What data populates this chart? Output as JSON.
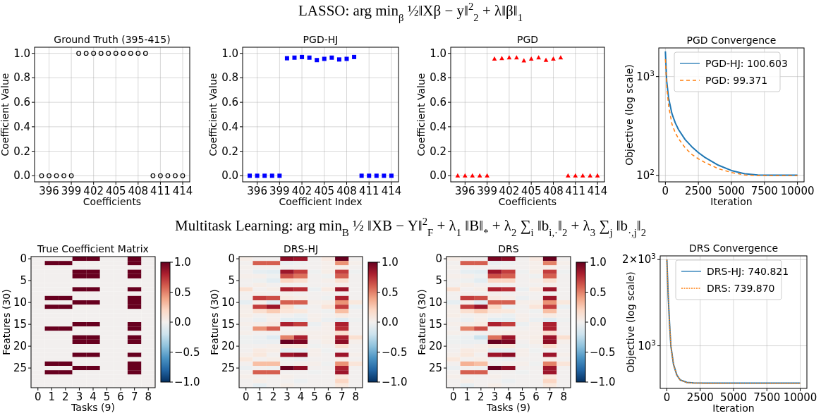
{
  "chart_data": [
    {
      "type": "scatter",
      "title": "Ground Truth (395-415)",
      "xlabel": "Coefficients",
      "ylabel": "Coefficient Value",
      "annotations": [
        "LASSO: arg min$_{β}$ ½‖Xβ − y‖$^{2}$$_{2}$ + λ‖β‖$_{1}$"
      ],
      "marker": "circle",
      "grid": true,
      "xlim": [
        394.05,
        414.95
      ],
      "xticks": [
        396,
        399,
        402,
        405,
        408,
        411,
        414
      ],
      "ylim": [
        -0.05,
        1.05
      ],
      "yticks": [
        {
          "value": 0,
          "label": "0.0"
        },
        {
          "value": 0.2,
          "label": "0.2"
        },
        {
          "value": 0.4,
          "label": "0.4"
        },
        {
          "value": 0.6,
          "label": "0.6"
        },
        {
          "value": 0.8,
          "label": "0.8"
        },
        {
          "value": 1,
          "label": "1.0"
        }
      ],
      "x": [
        395,
        396,
        397,
        398,
        399,
        400,
        401,
        402,
        403,
        404,
        405,
        406,
        407,
        408,
        409,
        410,
        411,
        412,
        413,
        414
      ],
      "series": [
        {
          "color": "#000000",
          "values": [
            0,
            0,
            0,
            0,
            0,
            1,
            1,
            1,
            1,
            1,
            1,
            1,
            1,
            1,
            1,
            0,
            0,
            0,
            0,
            0
          ]
        }
      ]
    },
    {
      "type": "scatter",
      "title": "PGD-HJ",
      "xlabel": "Coefficient Index",
      "ylabel": "Coefficient Value",
      "marker": "square",
      "grid": true,
      "xlim": [
        394.05,
        414.95
      ],
      "xticks": [
        396,
        399,
        402,
        405,
        408,
        411,
        414
      ],
      "ylim": [
        -0.05,
        1.05
      ],
      "yticks": [
        {
          "value": 0,
          "label": "0.0"
        },
        {
          "value": 0.2,
          "label": "0.2"
        },
        {
          "value": 0.4,
          "label": "0.4"
        },
        {
          "value": 0.6,
          "label": "0.6"
        },
        {
          "value": 0.8,
          "label": "0.8"
        },
        {
          "value": 1,
          "label": "1.0"
        }
      ],
      "x": [
        395,
        396,
        397,
        398,
        399,
        400,
        401,
        402,
        403,
        404,
        405,
        406,
        407,
        408,
        409,
        410,
        411,
        412,
        413,
        414
      ],
      "series": [
        {
          "color": "#0000ff",
          "values": [
            0,
            0,
            0,
            0,
            0,
            0.96,
            0.965,
            0.97,
            0.965,
            0.945,
            0.955,
            0.965,
            0.95,
            0.955,
            0.97,
            0,
            0,
            0,
            0,
            0
          ]
        }
      ]
    },
    {
      "type": "scatter",
      "title": "PGD",
      "xlabel": "Coefficients",
      "ylabel": "Coefficient Value",
      "marker": "triangle",
      "grid": true,
      "xlim": [
        394.05,
        414.95
      ],
      "xticks": [
        396,
        399,
        402,
        405,
        408,
        411,
        414
      ],
      "ylim": [
        -0.05,
        1.05
      ],
      "yticks": [
        {
          "value": 0,
          "label": "0.0"
        },
        {
          "value": 0.2,
          "label": "0.2"
        },
        {
          "value": 0.4,
          "label": "0.4"
        },
        {
          "value": 0.6,
          "label": "0.6"
        },
        {
          "value": 0.8,
          "label": "0.8"
        },
        {
          "value": 1,
          "label": "1.0"
        }
      ],
      "x": [
        395,
        396,
        397,
        398,
        399,
        400,
        401,
        402,
        403,
        404,
        405,
        406,
        407,
        408,
        409,
        410,
        411,
        412,
        413,
        414
      ],
      "series": [
        {
          "color": "#ff0000",
          "values": [
            0,
            0,
            0,
            0,
            0,
            0.955,
            0.96,
            0.965,
            0.965,
            0.94,
            0.955,
            0.965,
            0.945,
            0.955,
            0.965,
            0,
            0,
            0,
            0,
            0
          ]
        }
      ]
    },
    {
      "type": "line",
      "title": "PGD Convergence",
      "xlabel": "Iteration",
      "ylabel": "Objective (log scale)",
      "log": true,
      "grid": true,
      "legend": "top left",
      "xlim": [
        -500,
        10500
      ],
      "xticks": [
        0,
        2500,
        5000,
        7500,
        10000
      ],
      "ylim": [
        86,
        1950
      ],
      "yticks": [
        {
          "value": 100,
          "label": "10$^{2}$"
        },
        {
          "value": 1000,
          "label": "10$^{3}$"
        }
      ],
      "series": [
        {
          "name": "PGD-HJ: 100.603",
          "color": "#1f77b4",
          "line_style": "solid",
          "x": [
            0,
            100,
            250,
            500,
            750,
            1000,
            1500,
            2000,
            2500,
            3000,
            4000,
            5000,
            6000,
            7000,
            8000,
            10000
          ],
          "values": [
            1800,
            900,
            600,
            420,
            340,
            290,
            230,
            195,
            170,
            152,
            127,
            112,
            104,
            101,
            100.6,
            100.603
          ]
        },
        {
          "name": "PGD: 99.371",
          "color": "#ff7f0e",
          "line_style": "dashed",
          "x": [
            0,
            100,
            250,
            500,
            750,
            1000,
            1500,
            2000,
            2500,
            3000,
            4000,
            5000,
            6000,
            7000,
            8000,
            10000
          ],
          "values": [
            1500,
            800,
            500,
            330,
            270,
            235,
            190,
            163,
            147,
            135,
            117,
            107,
            101,
            99.6,
            99.4,
            99.371
          ]
        }
      ]
    },
    {
      "type": "heatmap",
      "title": "True Coefficient Matrix",
      "xlabel": "Tasks (9)",
      "ylabel": "Features (30)",
      "annotations": [
        "Multitask Learning: arg min$_{B}$ ½ ‖XB − Y‖$^{2}$$_{F}$ + λ$_{1}$ ‖B‖$_{*}$ + λ$_{2}$ ∑$_{i}$ ‖b$_{i,·}$‖$_{2}$ + λ$_{3}$ ∑$_{j}$ ‖b$_{·,j}$‖$_{2}$"
      ],
      "categories": [
        "0",
        "1",
        "2",
        "3",
        "4",
        "5",
        "6",
        "7",
        "8"
      ],
      "y_categories": [
        "0",
        null,
        null,
        null,
        null,
        "5",
        null,
        null,
        null,
        null,
        "10",
        null,
        null,
        null,
        null,
        "15",
        null,
        null,
        null,
        null,
        "20",
        null,
        null,
        null,
        null,
        "25",
        null,
        null,
        null,
        null
      ],
      "clim": [
        -1,
        1
      ],
      "cticks": [
        {
          "value": -1,
          "label": "−1.0"
        },
        {
          "value": -0.5,
          "label": "−0.5"
        },
        {
          "value": 0,
          "label": "0.0"
        },
        {
          "value": 0.5,
          "label": "0.5"
        },
        {
          "value": 1,
          "label": "1.0"
        }
      ],
      "cells": [
        [
          0,
          0,
          0,
          1,
          1,
          0,
          0,
          1,
          0
        ],
        [
          0,
          1,
          1,
          0,
          0,
          0,
          0,
          1,
          0
        ],
        [
          0,
          0,
          0,
          0,
          0,
          0,
          0,
          0,
          0
        ],
        [
          0,
          0,
          0,
          1,
          1,
          0,
          0,
          1,
          0
        ],
        [
          0,
          0,
          0,
          1,
          1,
          0,
          0,
          1,
          0
        ],
        [
          0,
          0,
          0,
          0,
          0,
          0,
          0,
          0,
          0
        ],
        [
          0,
          0,
          0,
          0,
          0,
          0,
          0,
          0,
          0
        ],
        [
          0,
          0,
          0,
          1,
          1,
          0,
          0,
          1,
          0
        ],
        [
          0,
          0,
          0,
          0,
          0,
          0,
          0,
          0,
          0
        ],
        [
          0,
          1,
          1,
          0,
          0,
          0,
          0,
          1,
          0
        ],
        [
          0,
          0,
          0,
          1,
          1,
          0,
          0,
          1,
          0
        ],
        [
          0,
          1,
          1,
          0,
          0,
          0,
          0,
          1,
          0
        ],
        [
          0,
          0,
          0,
          0,
          0,
          0,
          0,
          0,
          0
        ],
        [
          0,
          0,
          0,
          0,
          0,
          0,
          0,
          0,
          0
        ],
        [
          0,
          0,
          0,
          0,
          0,
          0,
          0,
          0,
          0
        ],
        [
          0,
          0,
          0,
          1,
          1,
          0,
          0,
          1,
          0
        ],
        [
          0,
          1,
          1,
          0,
          0,
          0,
          0,
          1,
          0
        ],
        [
          0,
          0,
          0,
          0,
          0,
          0,
          0,
          0,
          0
        ],
        [
          0,
          0,
          0,
          1,
          1,
          0,
          0,
          1,
          0
        ],
        [
          0,
          0,
          0,
          1,
          1,
          0,
          0,
          1,
          0
        ],
        [
          0,
          0,
          0,
          0,
          0,
          0,
          0,
          0,
          0
        ],
        [
          0,
          0,
          0,
          0,
          0,
          0,
          0,
          0,
          0
        ],
        [
          0,
          0,
          0,
          1,
          1,
          0,
          0,
          1,
          0
        ],
        [
          0,
          0,
          0,
          0,
          0,
          0,
          0,
          0,
          0
        ],
        [
          0,
          1,
          1,
          0,
          0,
          0,
          0,
          1,
          0
        ],
        [
          0,
          0,
          0,
          1,
          1,
          0,
          0,
          1,
          0
        ],
        [
          0,
          1,
          1,
          0,
          0,
          0,
          0,
          1,
          0
        ],
        [
          0,
          0,
          0,
          0,
          0,
          0,
          0,
          0,
          0
        ],
        [
          0,
          0,
          0,
          0,
          0,
          0,
          0,
          0,
          0
        ],
        [
          0,
          0,
          0,
          0,
          0,
          0,
          0,
          0,
          0
        ]
      ]
    },
    {
      "type": "heatmap",
      "title": "DRS-HJ",
      "ylabel": "Features (30)",
      "categories": [
        "0",
        "1",
        "2",
        "3",
        "4",
        "5",
        "6",
        "7",
        "8"
      ],
      "y_categories": [
        "0",
        null,
        null,
        null,
        null,
        "5",
        null,
        null,
        null,
        null,
        "10",
        null,
        null,
        null,
        null,
        "15",
        null,
        null,
        null,
        null,
        "20",
        null,
        null,
        null,
        null,
        "25",
        null,
        null,
        null,
        null
      ],
      "clim": [
        -1,
        1
      ],
      "cticks": [
        {
          "value": -1,
          "label": "−1.0"
        },
        {
          "value": -0.5,
          "label": "−0.5"
        },
        {
          "value": 0,
          "label": "0.0"
        },
        {
          "value": 0.5,
          "label": "0.5"
        },
        {
          "value": 1,
          "label": "1.0"
        }
      ],
      "cells": [
        [
          0.05,
          0,
          0,
          0.9,
          0.85,
          0,
          0.08,
          1,
          0
        ],
        [
          0,
          0.6,
          0.6,
          -0.05,
          -0.03,
          0,
          0.03,
          0.45,
          0.03
        ],
        [
          0.02,
          0,
          0,
          0,
          0,
          0,
          0.03,
          0.03,
          0
        ],
        [
          0,
          -0.08,
          -0.1,
          0.85,
          0.7,
          -0.03,
          0.05,
          0.7,
          -0.03
        ],
        [
          0.03,
          0.03,
          -0.03,
          0.65,
          0.55,
          0,
          -0.03,
          0.6,
          0
        ],
        [
          0,
          -0.03,
          -0.1,
          0.2,
          0.15,
          0,
          0.03,
          0.15,
          0
        ],
        [
          0,
          0.05,
          0,
          0,
          0,
          0,
          0,
          0.03,
          0
        ],
        [
          0.15,
          0,
          0.05,
          0.8,
          0.75,
          -0.05,
          0.08,
          0.85,
          0
        ],
        [
          0,
          0.03,
          0,
          0.03,
          0,
          0,
          0,
          0,
          0
        ],
        [
          0,
          0.7,
          0.65,
          0.08,
          0.05,
          0,
          -0.03,
          0.8,
          0
        ],
        [
          -0.08,
          0.03,
          -0.12,
          0.6,
          0.6,
          0.03,
          0.05,
          0.45,
          0.1
        ],
        [
          0.03,
          0.7,
          0.85,
          0.15,
          -0.05,
          0,
          0.12,
          0.7,
          -0.05
        ],
        [
          0.03,
          0.15,
          0.25,
          0.12,
          0.1,
          0,
          -0.03,
          0.3,
          0
        ],
        [
          0.05,
          0,
          0.03,
          0,
          -0.05,
          0.03,
          0,
          0.08,
          0
        ],
        [
          0,
          -0.05,
          0.03,
          -0.1,
          -0.1,
          0.03,
          -0.05,
          -0.12,
          -0.03
        ],
        [
          0.03,
          0.05,
          0.08,
          0.8,
          0.7,
          -0.05,
          0.03,
          0.8,
          0
        ],
        [
          0,
          0.45,
          0.6,
          0,
          0,
          0,
          0.03,
          0.75,
          0
        ],
        [
          0.03,
          0,
          0,
          0.03,
          0.05,
          0.03,
          0.03,
          0.15,
          0
        ],
        [
          -0.03,
          -0.05,
          -0.12,
          0.5,
          0.8,
          0.03,
          0.05,
          0.8,
          0.15
        ],
        [
          -0.03,
          -0.05,
          -0.05,
          1,
          0.95,
          0,
          0.05,
          0.9,
          0.03
        ],
        [
          0,
          0,
          0.03,
          0.1,
          0.1,
          -0.03,
          0,
          0.15,
          0
        ],
        [
          0,
          0.08,
          0.05,
          -0.1,
          -0.08,
          0.03,
          -0.03,
          0,
          0
        ],
        [
          0.03,
          0.1,
          0,
          0.85,
          0.9,
          0.03,
          0,
          0.85,
          0.03
        ],
        [
          0.1,
          0,
          0.05,
          -0.03,
          -0.05,
          0,
          0,
          0.05,
          0
        ],
        [
          0,
          0.3,
          0.3,
          0,
          0.03,
          0.03,
          -0.03,
          0.45,
          0.12
        ],
        [
          -0.05,
          0,
          -0.03,
          1,
          0.9,
          0,
          0,
          0.8,
          0
        ],
        [
          0,
          0.6,
          0.6,
          0,
          0,
          -0.03,
          0,
          0.85,
          0
        ],
        [
          0.03,
          0,
          0,
          0.03,
          0,
          0,
          0,
          0.1,
          0
        ],
        [
          0,
          0.05,
          0,
          0,
          -0.05,
          0,
          0,
          0.2,
          0
        ],
        [
          0,
          -0.08,
          0,
          0.05,
          0,
          0,
          0,
          0.1,
          0
        ]
      ]
    },
    {
      "type": "heatmap",
      "title": "DRS",
      "xlabel": "Tasks (9)",
      "ylabel": "Features (30)",
      "categories": [
        "0",
        "1",
        "2",
        "3",
        "4",
        "5",
        "6",
        "7",
        "8"
      ],
      "y_categories": [
        "0",
        null,
        null,
        null,
        null,
        "5",
        null,
        null,
        null,
        null,
        "10",
        null,
        null,
        null,
        null,
        "15",
        null,
        null,
        null,
        null,
        "20",
        null,
        null,
        null,
        null,
        "25",
        null,
        null,
        null,
        null
      ],
      "clim": [
        -1,
        1
      ],
      "cticks": [
        {
          "value": -1,
          "label": "−1.0"
        },
        {
          "value": -0.5,
          "label": "−0.5"
        },
        {
          "value": 0,
          "label": "0.0"
        },
        {
          "value": 0.5,
          "label": "0.5"
        },
        {
          "value": 1,
          "label": "1.0"
        }
      ],
      "cells": [
        [
          0.05,
          0,
          0,
          0.95,
          0.9,
          0,
          0.08,
          1,
          0
        ],
        [
          0,
          0.6,
          0.6,
          -0.05,
          -0.03,
          0,
          0.03,
          0.5,
          0.03
        ],
        [
          0.02,
          0,
          0,
          0,
          0,
          0,
          0.03,
          0.03,
          0
        ],
        [
          0,
          -0.08,
          -0.1,
          0.85,
          0.7,
          -0.03,
          0.05,
          0.7,
          -0.03
        ],
        [
          0.03,
          0.03,
          -0.03,
          0.65,
          0.6,
          0,
          -0.03,
          0.6,
          0
        ],
        [
          0,
          -0.03,
          -0.1,
          0.2,
          0.2,
          0,
          0.03,
          0.15,
          0
        ],
        [
          0,
          0.05,
          0,
          0,
          0,
          0,
          0,
          0.03,
          0
        ],
        [
          0.15,
          0,
          0.05,
          0.8,
          0.75,
          -0.05,
          0.08,
          0.85,
          0
        ],
        [
          0,
          0.03,
          0,
          0.03,
          0,
          0,
          0,
          0,
          0
        ],
        [
          0,
          0.7,
          0.65,
          0.08,
          0.05,
          -0.05,
          0,
          0.85,
          0
        ],
        [
          -0.08,
          0.03,
          -0.12,
          0.6,
          0.6,
          0.03,
          0.05,
          0.45,
          0.1
        ],
        [
          0.03,
          0.7,
          0.85,
          0.2,
          -0.05,
          0,
          0.12,
          0.7,
          -0.05
        ],
        [
          0.03,
          0.15,
          0.25,
          0.12,
          0.1,
          0,
          -0.03,
          0.3,
          0
        ],
        [
          0.05,
          0,
          0.03,
          0,
          -0.05,
          0.03,
          0,
          0.08,
          0
        ],
        [
          0,
          -0.05,
          0.03,
          -0.1,
          -0.1,
          0.03,
          -0.05,
          -0.12,
          -0.03
        ],
        [
          0.03,
          0.05,
          0.08,
          0.8,
          0.7,
          -0.05,
          0.03,
          0.8,
          0
        ],
        [
          0,
          0.5,
          0.65,
          0,
          0,
          0,
          0.03,
          0.8,
          0
        ],
        [
          0.03,
          0,
          0,
          0.03,
          0.05,
          0.03,
          0.03,
          0.15,
          0
        ],
        [
          -0.03,
          -0.05,
          -0.2,
          0.55,
          0.85,
          0.03,
          0.05,
          0.85,
          0.15
        ],
        [
          -0.03,
          -0.05,
          -0.05,
          1,
          0.95,
          0,
          0.05,
          0.9,
          0.03
        ],
        [
          0,
          0,
          0.03,
          0.1,
          0.1,
          -0.03,
          0,
          0.15,
          0
        ],
        [
          0,
          0.08,
          0.05,
          -0.1,
          -0.08,
          0.03,
          -0.03,
          0,
          0
        ],
        [
          0.03,
          0.1,
          0,
          0.85,
          0.9,
          0.03,
          0,
          0.85,
          0.03
        ],
        [
          0.1,
          0,
          0.05,
          -0.03,
          -0.05,
          0,
          0,
          0.05,
          0
        ],
        [
          0,
          0.35,
          0.3,
          0,
          0.03,
          0.03,
          -0.03,
          0.5,
          0.12
        ],
        [
          -0.05,
          0,
          -0.03,
          1,
          0.9,
          0,
          0,
          0.85,
          0
        ],
        [
          0,
          0.6,
          0.6,
          0,
          0,
          -0.03,
          0,
          0.85,
          0
        ],
        [
          0.03,
          0,
          0,
          0.03,
          0,
          0,
          0,
          0.1,
          0
        ],
        [
          0,
          0.05,
          0,
          0,
          -0.05,
          0,
          0,
          0.2,
          0
        ],
        [
          0,
          -0.08,
          0,
          0.05,
          0,
          0,
          0,
          0.1,
          0
        ]
      ]
    },
    {
      "type": "line",
      "title": "DRS Convergence",
      "xlabel": "Iteration",
      "ylabel": "Objective (log scale)",
      "log": true,
      "grid": true,
      "legend": "top left",
      "xlim": [
        -500,
        10500
      ],
      "xticks": [
        0,
        2500,
        5000,
        7500,
        10000
      ],
      "ylim": [
        710,
        2060
      ],
      "yticks": [
        {
          "value": 1000,
          "label": "10$^{3}$"
        },
        {
          "value": 2000,
          "label": "2×10$^{3}$"
        }
      ],
      "series": [
        {
          "name": "DRS-HJ: 740.821",
          "color": "#1f77b4",
          "line_style": "solid",
          "x": [
            0,
            100,
            200,
            300,
            500,
            750,
            1000,
            1500,
            2000,
            3000,
            5000,
            10000
          ],
          "values": [
            2000,
            1500,
            1200,
            1000,
            860,
            790,
            760,
            745,
            742,
            741,
            740.85,
            740.821
          ]
        },
        {
          "name": "DRS: 739.870",
          "color": "#ff7f0e",
          "line_style": "dotted",
          "x": [
            0,
            100,
            200,
            300,
            500,
            750,
            1000,
            1500,
            2000,
            3000,
            5000,
            10000
          ],
          "values": [
            2000,
            1500,
            1200,
            1000,
            860,
            790,
            759,
            744,
            741,
            740,
            739.9,
            739.87
          ]
        }
      ]
    }
  ]
}
